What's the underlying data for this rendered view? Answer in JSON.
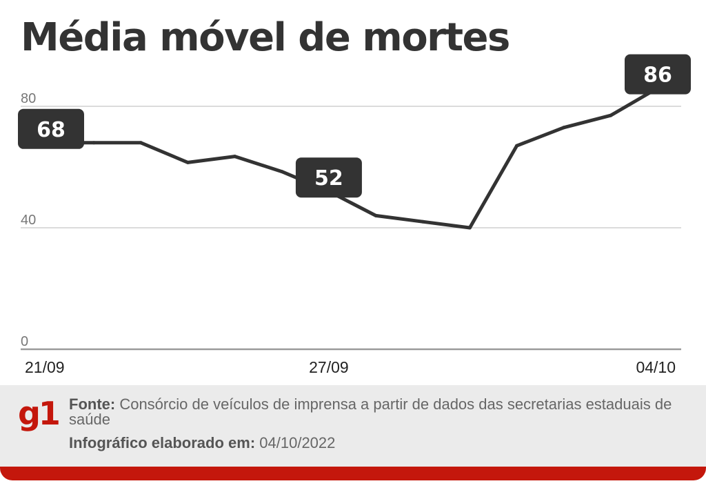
{
  "title": "Média móvel de mortes",
  "chart_data": {
    "type": "line",
    "x": [
      "21/09",
      "22/09",
      "23/09",
      "24/09",
      "25/09",
      "26/09",
      "27/09",
      "28/09",
      "29/09",
      "30/09",
      "01/10",
      "02/10",
      "03/10",
      "04/10"
    ],
    "values": [
      68,
      68,
      68,
      61.5,
      63.5,
      58.5,
      52,
      44,
      42,
      40,
      67,
      73,
      77,
      86
    ],
    "xticks": [
      "21/09",
      "27/09",
      "04/10"
    ],
    "yticks": [
      0,
      40,
      80
    ],
    "ylim": [
      0,
      90
    ],
    "annotations": [
      {
        "x": "21/09",
        "label": "68"
      },
      {
        "x": "27/09",
        "label": "52"
      },
      {
        "x": "04/10",
        "label": "86"
      }
    ],
    "grid": true,
    "line_color": "#333333",
    "label_bg": "#333333"
  },
  "footer": {
    "logo": "g1",
    "source_label": "Fonte:",
    "source_text": "Consórcio de veículos de imprensa a partir de dados das secretarias estaduais de saúde",
    "credit_label": "Infográfico elaborado em:",
    "credit_date": "04/10/2022"
  },
  "colors": {
    "brand": "#c4170c",
    "footer_bg": "#ebebeb",
    "text": "#333333"
  }
}
